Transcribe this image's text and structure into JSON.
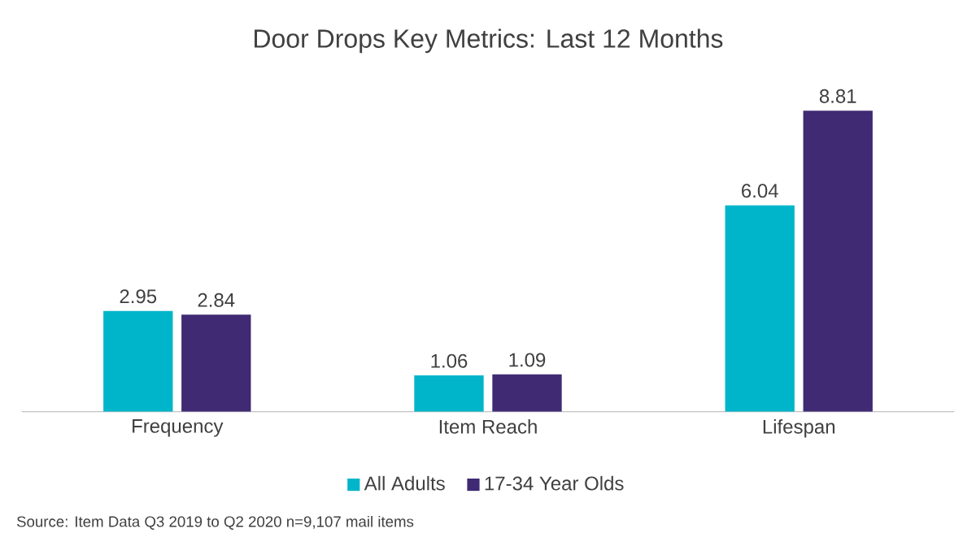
{
  "chart_data": {
    "type": "bar",
    "title": "Door Drops Key Metrics: Last 12 Months",
    "categories": [
      "Frequency",
      "Item Reach",
      "Lifespan"
    ],
    "series": [
      {
        "name": "All Adults",
        "color": "#00b5c9",
        "values": [
          2.95,
          1.06,
          6.04
        ]
      },
      {
        "name": "17-34 Year Olds",
        "color": "#3f2a73",
        "values": [
          2.84,
          1.09,
          8.81
        ]
      }
    ],
    "data_labels": true,
    "legend": "bottom",
    "annotations": [
      "Source: Item Data Q3 2019 to Q2 2020 n=9,107 mail items"
    ]
  }
}
